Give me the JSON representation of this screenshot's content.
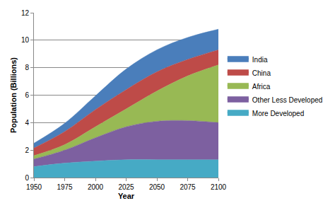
{
  "chart_data": {
    "type": "area",
    "stacked": true,
    "x_label": "Year",
    "y_label": "Population (Billions)",
    "x": [
      1950,
      1975,
      2000,
      2025,
      2050,
      2075,
      2100
    ],
    "xlim": [
      1950,
      2100
    ],
    "xticks": [
      1950,
      1975,
      2000,
      2025,
      2050,
      2075,
      2100
    ],
    "ylim": [
      0,
      12
    ],
    "yticks": [
      0,
      2,
      4,
      6,
      8,
      10,
      12
    ],
    "grid": true,
    "legend": "right",
    "series": [
      {
        "name": "More Developed",
        "color": "#46aac5",
        "values": [
          0.8,
          1.05,
          1.2,
          1.3,
          1.3,
          1.3,
          1.3
        ]
      },
      {
        "name": "Other Less Developed",
        "color": "#7d60a0",
        "values": [
          0.55,
          0.95,
          1.7,
          2.4,
          2.8,
          2.85,
          2.7
        ]
      },
      {
        "name": "Africa",
        "color": "#98b954",
        "values": [
          0.25,
          0.4,
          0.8,
          1.3,
          2.2,
          3.25,
          4.2
        ]
      },
      {
        "name": "China",
        "color": "#be4b48",
        "values": [
          0.55,
          0.95,
          1.25,
          1.4,
          1.4,
          1.2,
          1.1
        ]
      },
      {
        "name": "India",
        "color": "#4a7ebb",
        "values": [
          0.35,
          0.6,
          1.0,
          1.5,
          1.6,
          1.6,
          1.5
        ]
      }
    ]
  }
}
